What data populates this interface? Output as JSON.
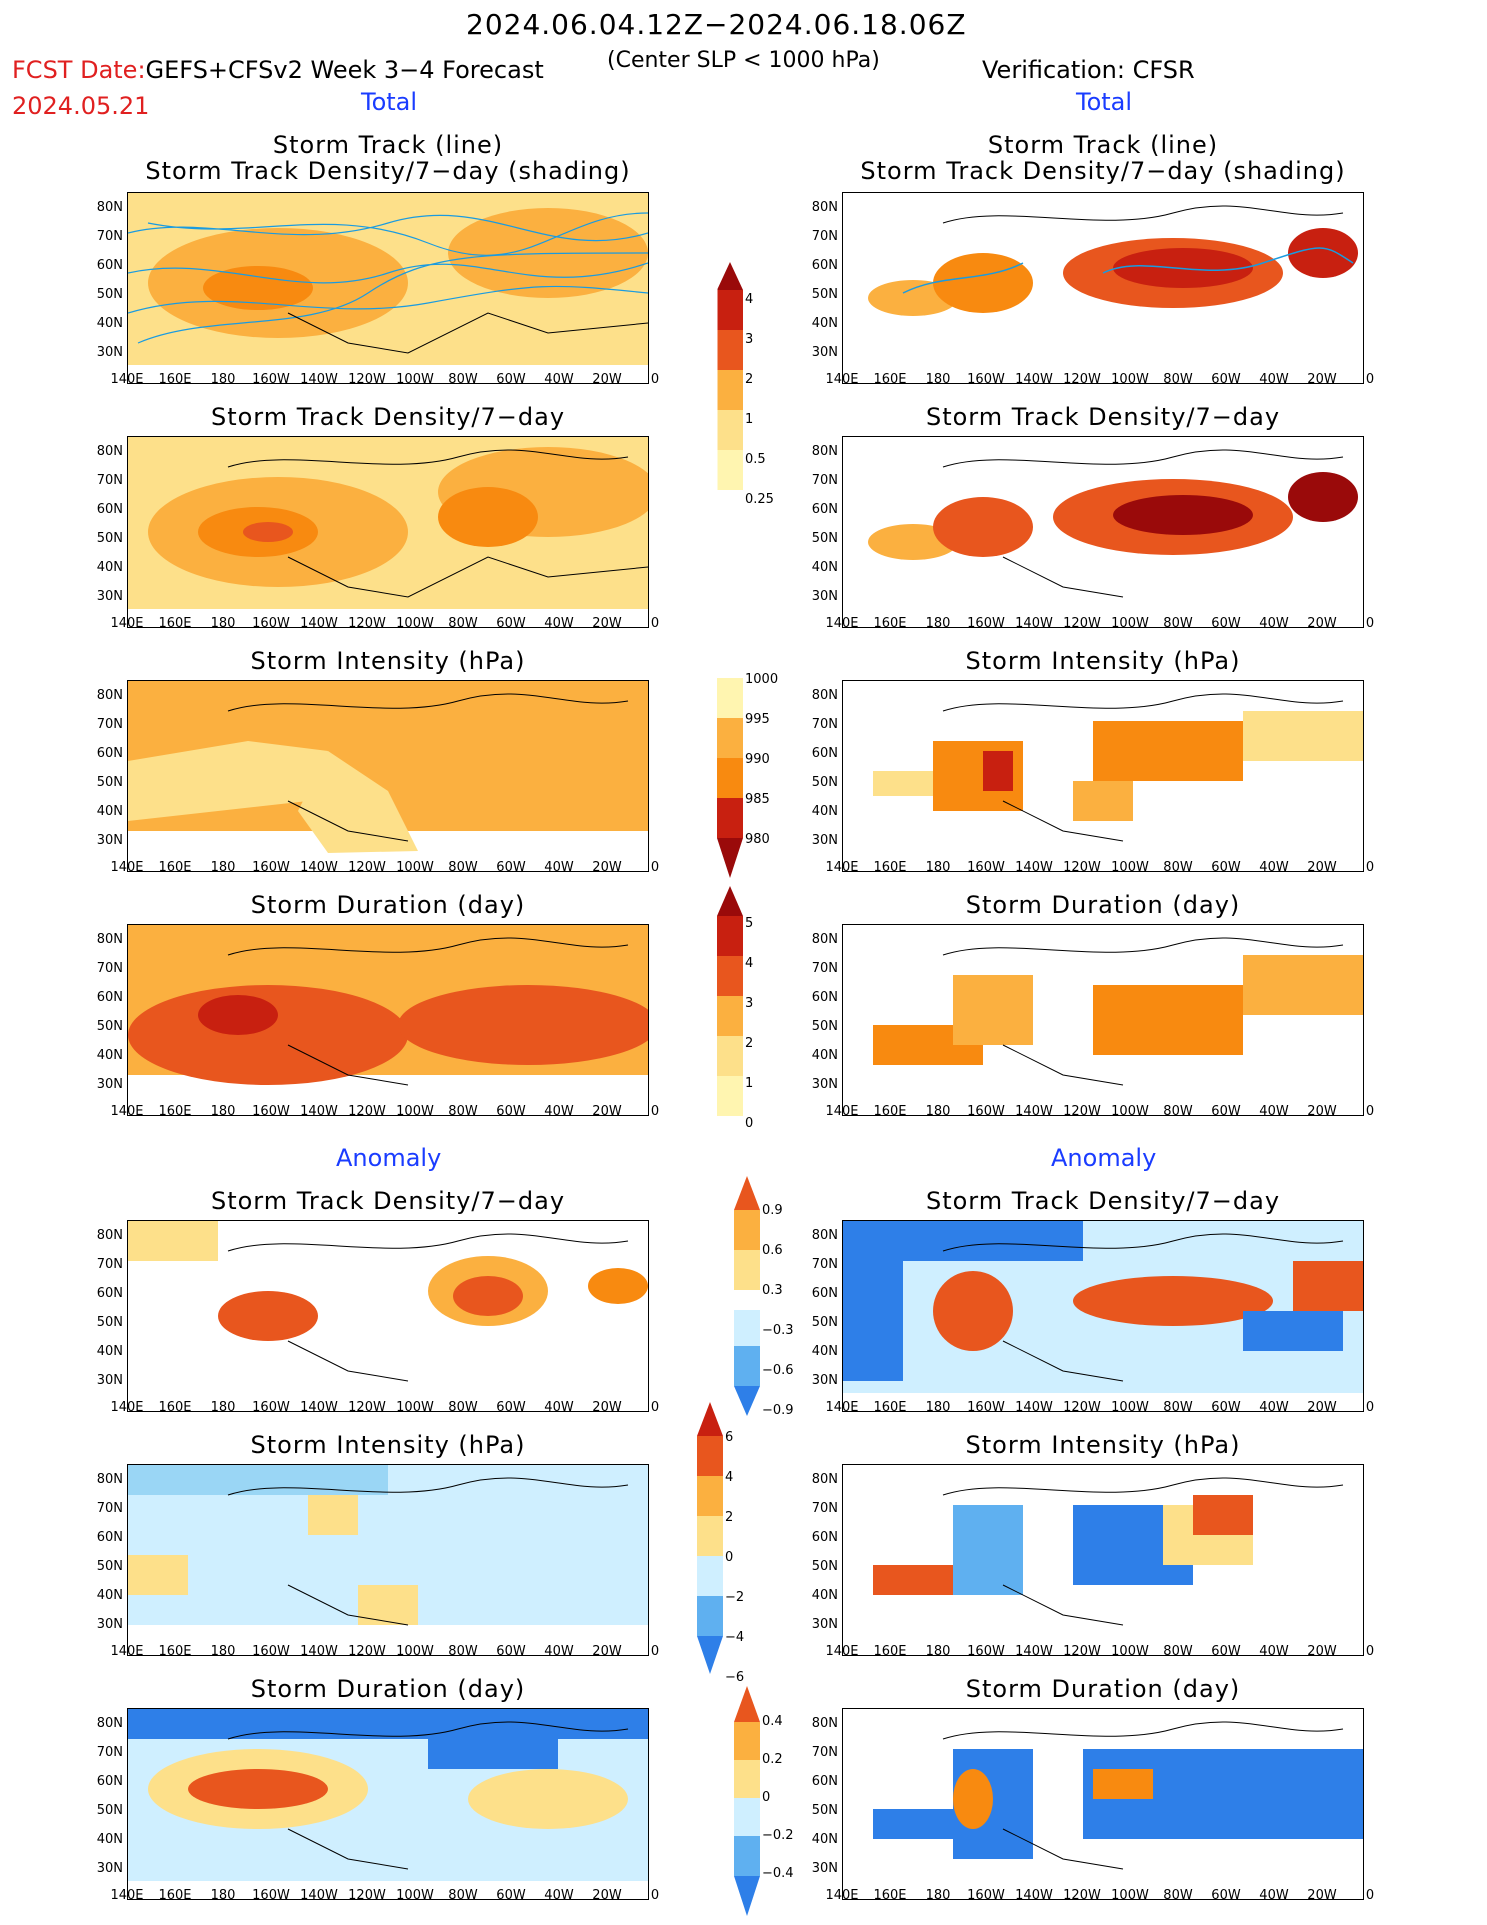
{
  "header": {
    "date_range": "2024.06.04.12Z−2024.06.18.06Z",
    "fcst_date_label": "FCST Date:",
    "fcst_date": "2024.05.21",
    "left_title": "GEFS+CFSv2 Week 3−4 Forecast",
    "center_note": "(Center SLP < 1000 hPa)",
    "right_title": "Verification: CFSR"
  },
  "sections": {
    "total": "Total",
    "anomaly": "Anomaly"
  },
  "panels": {
    "track1": "Storm Track (line)",
    "track2": "Storm Track Density/7−day (shading)",
    "density": "Storm Track Density/7−day",
    "intensity": "Storm Intensity (hPa)",
    "duration": "Storm Duration (day)"
  },
  "axes": {
    "lat": [
      "80N",
      "70N",
      "60N",
      "50N",
      "40N",
      "30N"
    ],
    "lon": [
      "140E",
      "160E",
      "180",
      "160W",
      "140W",
      "120W",
      "100W",
      "80W",
      "60W",
      "40W",
      "20W",
      "0"
    ]
  },
  "colorbars": {
    "density": [
      "4",
      "3",
      "2",
      "1",
      "0.5",
      "0.25"
    ],
    "intensity": [
      "1000",
      "995",
      "990",
      "985",
      "980"
    ],
    "duration": [
      "5",
      "4",
      "3",
      "2",
      "1",
      "0"
    ],
    "density_anom": [
      "0.9",
      "0.6",
      "0.3",
      "−0.3",
      "−0.6",
      "−0.9"
    ],
    "intensity_anom": [
      "6",
      "4",
      "2",
      "0",
      "−2",
      "−4",
      "−6"
    ],
    "duration_anom": [
      "0.4",
      "0.2",
      "0",
      "−0.2",
      "−0.4"
    ]
  },
  "colors": {
    "warm": [
      "#fff5b0",
      "#fde08a",
      "#fbb040",
      "#f88a10",
      "#e8561e",
      "#c82010",
      "#9a0a0a"
    ],
    "cool": [
      "#cfefff",
      "#9ad6f5",
      "#5fb0f0",
      "#2e7fe8",
      "#1a55d0"
    ],
    "track_line": "#1a9be0"
  }
}
